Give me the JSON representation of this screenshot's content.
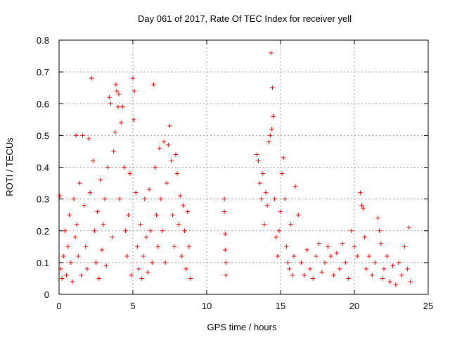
{
  "chart_data": {
    "type": "scatter",
    "title": "Day 061 of 2017, Rate Of TEC Index for receiver yell",
    "xlabel": "GPS time / hours",
    "ylabel": "ROTI / TECUs",
    "xlim": [
      0,
      25
    ],
    "ylim": [
      0,
      0.8
    ],
    "xticks": [
      0,
      5,
      10,
      15,
      20,
      25
    ],
    "xtick_labels": [
      "0",
      "5",
      "10",
      "15",
      "20",
      "25"
    ],
    "yticks": [
      0,
      0.1,
      0.2,
      0.3,
      0.4,
      0.5,
      0.6,
      0.7,
      0.8
    ],
    "ytick_labels": [
      "0",
      "0.1",
      "0.2",
      "0.3",
      "0.4",
      "0.5",
      "0.6",
      "0.7",
      "0.8"
    ],
    "grid": true,
    "marker": "+",
    "color": "#ff0000",
    "series": [
      {
        "name": "ROTI",
        "points": [
          [
            0.05,
            0.31
          ],
          [
            0.1,
            0.08
          ],
          [
            0.2,
            0.05
          ],
          [
            0.3,
            0.12
          ],
          [
            0.4,
            0.2
          ],
          [
            0.5,
            0.06
          ],
          [
            0.6,
            0.15
          ],
          [
            0.7,
            0.25
          ],
          [
            0.8,
            0.1
          ],
          [
            0.9,
            0.04
          ],
          [
            1.0,
            0.3
          ],
          [
            1.1,
            0.18
          ],
          [
            1.15,
            0.5
          ],
          [
            1.2,
            0.22
          ],
          [
            1.3,
            0.12
          ],
          [
            1.4,
            0.35
          ],
          [
            1.5,
            0.06
          ],
          [
            1.6,
            0.5
          ],
          [
            1.7,
            0.28
          ],
          [
            1.8,
            0.15
          ],
          [
            1.9,
            0.08
          ],
          [
            2.0,
            0.49
          ],
          [
            2.1,
            0.32
          ],
          [
            2.2,
            0.68
          ],
          [
            2.3,
            0.42
          ],
          [
            2.4,
            0.2
          ],
          [
            2.5,
            0.1
          ],
          [
            2.6,
            0.26
          ],
          [
            2.7,
            0.05
          ],
          [
            2.8,
            0.36
          ],
          [
            2.9,
            0.14
          ],
          [
            3.0,
            0.22
          ],
          [
            3.1,
            0.3
          ],
          [
            3.2,
            0.09
          ],
          [
            3.3,
            0.4
          ],
          [
            3.4,
            0.62
          ],
          [
            3.5,
            0.6
          ],
          [
            3.6,
            0.18
          ],
          [
            3.7,
            0.45
          ],
          [
            3.8,
            0.51
          ],
          [
            3.85,
            0.66
          ],
          [
            3.9,
            0.64
          ],
          [
            4.0,
            0.59
          ],
          [
            4.05,
            0.63
          ],
          [
            4.1,
            0.3
          ],
          [
            4.2,
            0.54
          ],
          [
            4.3,
            0.59
          ],
          [
            4.4,
            0.4
          ],
          [
            4.5,
            0.2
          ],
          [
            4.6,
            0.12
          ],
          [
            4.7,
            0.25
          ],
          [
            4.8,
            0.38
          ],
          [
            4.9,
            0.06
          ],
          [
            5.0,
            0.68
          ],
          [
            5.05,
            0.55
          ],
          [
            5.1,
            0.64
          ],
          [
            5.2,
            0.32
          ],
          [
            5.3,
            0.15
          ],
          [
            5.4,
            0.08
          ],
          [
            5.5,
            0.22
          ],
          [
            5.6,
            0.05
          ],
          [
            5.7,
            0.12
          ],
          [
            5.8,
            0.3
          ],
          [
            5.9,
            0.18
          ],
          [
            6.0,
            0.07
          ],
          [
            6.1,
            0.33
          ],
          [
            6.2,
            0.2
          ],
          [
            6.3,
            0.1
          ],
          [
            6.4,
            0.66
          ],
          [
            6.5,
            0.4
          ],
          [
            6.6,
            0.25
          ],
          [
            6.7,
            0.15
          ],
          [
            6.8,
            0.46
          ],
          [
            6.9,
            0.3
          ],
          [
            7.0,
            0.2
          ],
          [
            7.1,
            0.48
          ],
          [
            7.2,
            0.1
          ],
          [
            7.3,
            0.35
          ],
          [
            7.4,
            0.47
          ],
          [
            7.5,
            0.53
          ],
          [
            7.6,
            0.42
          ],
          [
            7.7,
            0.25
          ],
          [
            7.8,
            0.15
          ],
          [
            7.9,
            0.44
          ],
          [
            8.0,
            0.38
          ],
          [
            8.1,
            0.22
          ],
          [
            8.2,
            0.31
          ],
          [
            8.3,
            0.12
          ],
          [
            8.4,
            0.28
          ],
          [
            8.5,
            0.2
          ],
          [
            8.6,
            0.08
          ],
          [
            8.7,
            0.26
          ],
          [
            8.8,
            0.15
          ],
          [
            8.9,
            0.05
          ],
          [
            11.2,
            0.3
          ],
          [
            11.2,
            0.26
          ],
          [
            11.25,
            0.19
          ],
          [
            11.25,
            0.14
          ],
          [
            11.3,
            0.1
          ],
          [
            11.3,
            0.06
          ],
          [
            13.4,
            0.44
          ],
          [
            13.5,
            0.42
          ],
          [
            13.6,
            0.35
          ],
          [
            13.7,
            0.3
          ],
          [
            13.8,
            0.38
          ],
          [
            13.9,
            0.22
          ],
          [
            14.0,
            0.32
          ],
          [
            14.1,
            0.28
          ],
          [
            14.2,
            0.48
          ],
          [
            14.3,
            0.5
          ],
          [
            14.35,
            0.76
          ],
          [
            14.4,
            0.52
          ],
          [
            14.45,
            0.65
          ],
          [
            14.5,
            0.56
          ],
          [
            14.6,
            0.3
          ],
          [
            14.7,
            0.18
          ],
          [
            14.8,
            0.12
          ],
          [
            14.9,
            0.2
          ],
          [
            15.0,
            0.26
          ],
          [
            15.1,
            0.38
          ],
          [
            15.2,
            0.43
          ],
          [
            15.3,
            0.3
          ],
          [
            15.4,
            0.15
          ],
          [
            15.5,
            0.1
          ],
          [
            15.6,
            0.08
          ],
          [
            15.7,
            0.22
          ],
          [
            15.8,
            0.06
          ],
          [
            15.9,
            0.12
          ],
          [
            16.0,
            0.34
          ],
          [
            16.2,
            0.25
          ],
          [
            16.4,
            0.1
          ],
          [
            16.6,
            0.06
          ],
          [
            16.8,
            0.14
          ],
          [
            17.0,
            0.08
          ],
          [
            17.2,
            0.05
          ],
          [
            17.4,
            0.12
          ],
          [
            17.6,
            0.16
          ],
          [
            17.8,
            0.07
          ],
          [
            18.0,
            0.1
          ],
          [
            18.2,
            0.15
          ],
          [
            18.4,
            0.12
          ],
          [
            18.6,
            0.06
          ],
          [
            18.8,
            0.13
          ],
          [
            19.0,
            0.08
          ],
          [
            19.2,
            0.16
          ],
          [
            19.4,
            0.1
          ],
          [
            19.6,
            0.05
          ],
          [
            19.8,
            0.2
          ],
          [
            20.0,
            0.15
          ],
          [
            20.2,
            0.12
          ],
          [
            20.4,
            0.32
          ],
          [
            20.5,
            0.28
          ],
          [
            20.6,
            0.27
          ],
          [
            20.7,
            0.18
          ],
          [
            20.8,
            0.08
          ],
          [
            21.0,
            0.12
          ],
          [
            21.2,
            0.06
          ],
          [
            21.4,
            0.1
          ],
          [
            21.6,
            0.24
          ],
          [
            21.7,
            0.2
          ],
          [
            21.8,
            0.16
          ],
          [
            21.9,
            0.05
          ],
          [
            22.0,
            0.08
          ],
          [
            22.2,
            0.12
          ],
          [
            22.4,
            0.04
          ],
          [
            22.6,
            0.09
          ],
          [
            22.8,
            0.03
          ],
          [
            23.0,
            0.1
          ],
          [
            23.2,
            0.06
          ],
          [
            23.4,
            0.15
          ],
          [
            23.6,
            0.08
          ],
          [
            23.7,
            0.21
          ],
          [
            23.8,
            0.04
          ]
        ]
      }
    ]
  }
}
